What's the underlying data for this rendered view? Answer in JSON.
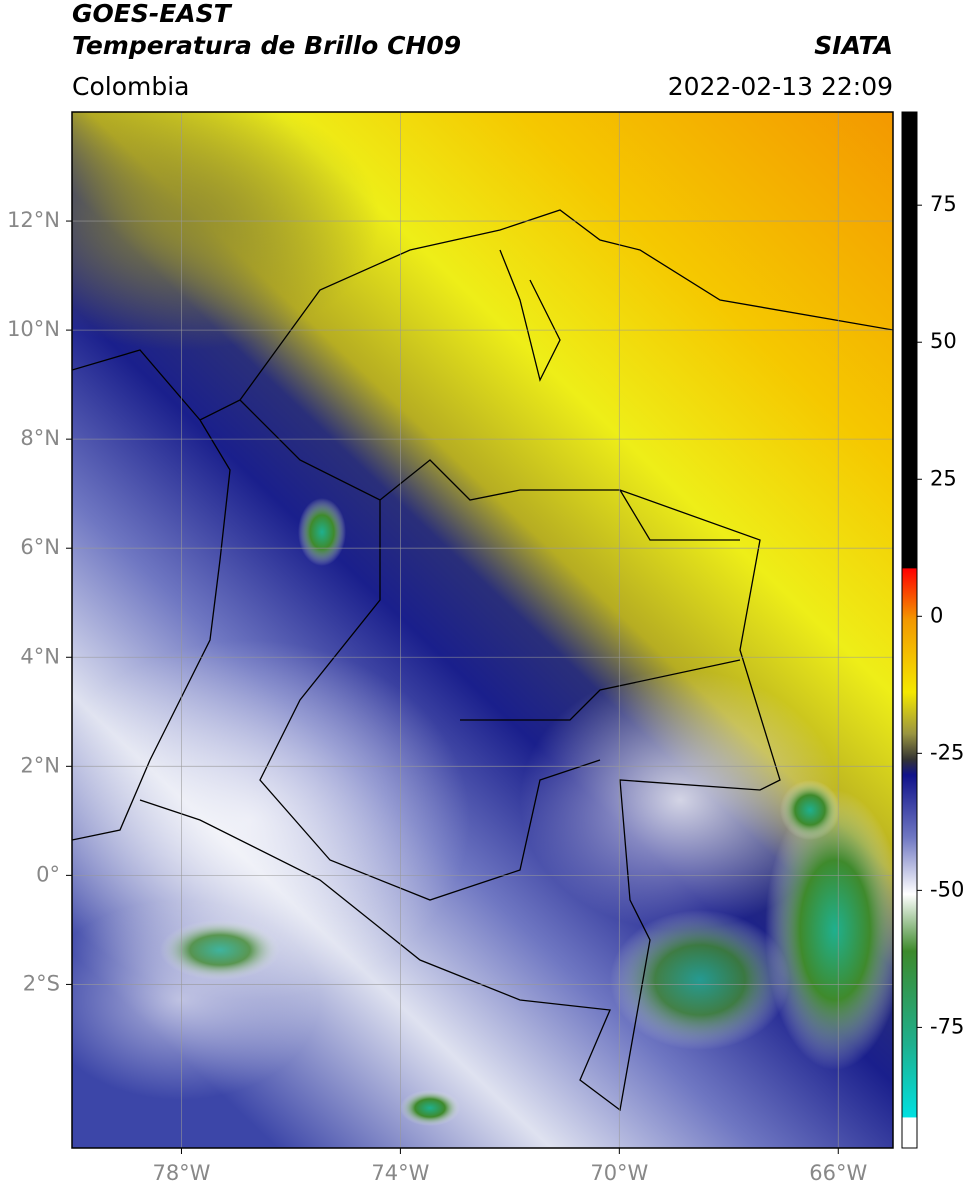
{
  "header": {
    "source": "GOES-EAST",
    "title": "Temperatura de Brillo CH09",
    "brand": "SIATA",
    "region": "Colombia",
    "timestamp": "2022-02-13 22:09"
  },
  "map": {
    "xlim": [
      -80,
      -65
    ],
    "ylim": [
      -5,
      14
    ],
    "xticks": [
      {
        "value": -78,
        "label": "78°W"
      },
      {
        "value": -74,
        "label": "74°W"
      },
      {
        "value": -70,
        "label": "70°W"
      },
      {
        "value": -66,
        "label": "66°W"
      }
    ],
    "yticks": [
      {
        "value": 12,
        "label": "12°N"
      },
      {
        "value": 10,
        "label": "10°N"
      },
      {
        "value": 8,
        "label": "8°N"
      },
      {
        "value": 6,
        "label": "6°N"
      },
      {
        "value": 4,
        "label": "4°N"
      },
      {
        "value": 2,
        "label": "2°N"
      },
      {
        "value": 0,
        "label": "0°"
      },
      {
        "value": -2,
        "label": "2°S"
      }
    ],
    "grid": true
  },
  "colorbar": {
    "lim": [
      -97,
      92
    ],
    "ticks": [
      75,
      50,
      25,
      0,
      -25,
      -50,
      -75
    ]
  }
}
